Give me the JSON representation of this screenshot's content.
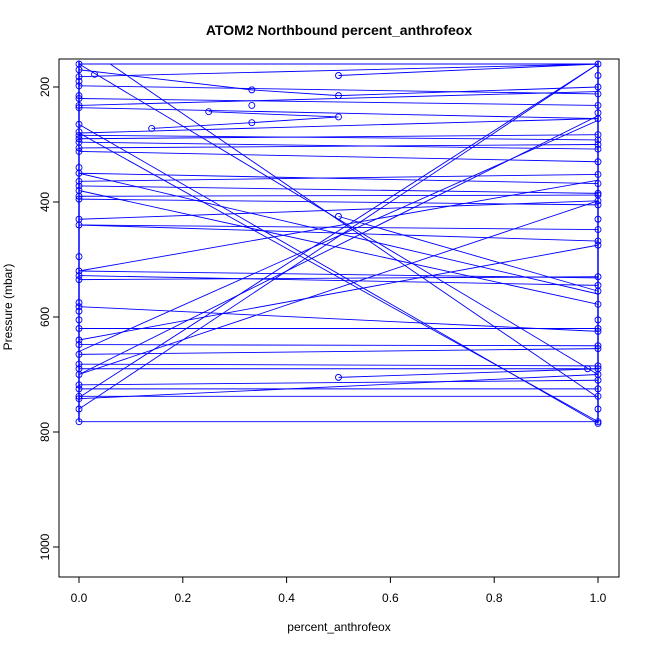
{
  "chart_data": {
    "type": "line",
    "title": "ATOM2 Northbound percent_anthrofeox",
    "xlabel": "percent_anthrofeox",
    "ylabel": "Pressure (mbar)",
    "xlim": [
      -0.04,
      1.04
    ],
    "ylim": [
      1050,
      155
    ],
    "y_reversed": true,
    "x_ticks": [
      0.0,
      0.2,
      0.4,
      0.6,
      0.8,
      1.0
    ],
    "x_tick_labels": [
      "0.0",
      "0.2",
      "0.4",
      "0.6",
      "0.8",
      "1.0"
    ],
    "y_ticks": [
      200,
      400,
      600,
      800,
      1000
    ],
    "y_tick_labels": [
      "200",
      "400",
      "600",
      "800",
      "1000"
    ],
    "series_color": "#0000ff",
    "grid": false,
    "segments": [
      [
        [
          0,
          160
        ],
        [
          1,
          160
        ]
      ],
      [
        [
          0,
          182
        ],
        [
          1,
          160
        ]
      ],
      [
        [
          0,
          198
        ],
        [
          1,
          212
        ]
      ],
      [
        [
          0,
          220
        ],
        [
          1,
          232
        ]
      ],
      [
        [
          0,
          232
        ],
        [
          1,
          208
        ]
      ],
      [
        [
          0,
          236
        ],
        [
          1,
          255
        ]
      ],
      [
        [
          0,
          280
        ],
        [
          1,
          255
        ]
      ],
      [
        [
          0,
          284
        ],
        [
          1,
          292
        ]
      ],
      [
        [
          0,
          290
        ],
        [
          1,
          283
        ]
      ],
      [
        [
          0,
          296
        ],
        [
          1,
          308
        ]
      ],
      [
        [
          0,
          306
        ],
        [
          1,
          300
        ]
      ],
      [
        [
          0,
          312
        ],
        [
          1,
          330
        ]
      ],
      [
        [
          0,
          350
        ],
        [
          1,
          368
        ]
      ],
      [
        [
          0,
          364
        ],
        [
          1,
          352
        ]
      ],
      [
        [
          0,
          372
        ],
        [
          1,
          385
        ]
      ],
      [
        [
          0,
          390
        ],
        [
          1,
          388
        ]
      ],
      [
        [
          0,
          395
        ],
        [
          1,
          405
        ]
      ],
      [
        [
          0,
          430
        ],
        [
          1,
          398
        ]
      ],
      [
        [
          0,
          440
        ],
        [
          1,
          448
        ]
      ],
      [
        [
          0,
          440
        ],
        [
          1,
          468
        ]
      ],
      [
        [
          0,
          520
        ],
        [
          1,
          532
        ]
      ],
      [
        [
          0,
          528
        ],
        [
          1,
          545
        ]
      ],
      [
        [
          0,
          535
        ],
        [
          1,
          530
        ]
      ],
      [
        [
          0,
          582
        ],
        [
          1,
          625
        ]
      ],
      [
        [
          0,
          620
        ],
        [
          1,
          620
        ]
      ],
      [
        [
          0,
          648
        ],
        [
          1,
          650
        ]
      ],
      [
        [
          0,
          665
        ],
        [
          1,
          655
        ]
      ],
      [
        [
          0,
          682
        ],
        [
          1,
          685
        ]
      ],
      [
        [
          0,
          690
        ],
        [
          1,
          690
        ]
      ],
      [
        [
          0,
          718
        ],
        [
          1,
          710
        ]
      ],
      [
        [
          0,
          725
        ],
        [
          1,
          725
        ]
      ],
      [
        [
          0,
          738
        ],
        [
          1,
          738
        ]
      ],
      [
        [
          0,
          742
        ],
        [
          1,
          700
        ]
      ],
      [
        [
          0,
          782
        ],
        [
          1,
          782
        ]
      ],
      [
        [
          0,
          760
        ],
        [
          1,
          160
        ]
      ],
      [
        [
          0,
          740
        ],
        [
          1,
          160
        ]
      ],
      [
        [
          0,
          700
        ],
        [
          1,
          250
        ]
      ],
      [
        [
          0,
          700
        ],
        [
          1,
          398
        ]
      ],
      [
        [
          0,
          660
        ],
        [
          1,
          258
        ]
      ],
      [
        [
          0,
          640
        ],
        [
          1,
          475
        ]
      ],
      [
        [
          0,
          520
        ],
        [
          1,
          362
        ]
      ],
      [
        [
          0,
          280
        ],
        [
          1,
          782
        ]
      ],
      [
        [
          0,
          265
        ],
        [
          1,
          785
        ]
      ],
      [
        [
          0,
          160
        ],
        [
          1,
          700
        ]
      ],
      [
        [
          0.06,
          160
        ],
        [
          1,
          740
        ]
      ],
      [
        [
          0,
          350
        ],
        [
          1,
          560
        ]
      ],
      [
        [
          0,
          380
        ],
        [
          1,
          578
        ]
      ],
      [
        [
          0.5,
          180
        ],
        [
          1,
          160
        ]
      ],
      [
        [
          0.5,
          215
        ],
        [
          1,
          200
        ]
      ],
      [
        [
          0.333,
          205
        ],
        [
          0.5,
          215
        ]
      ],
      [
        [
          0.25,
          243
        ],
        [
          0.5,
          252
        ]
      ],
      [
        [
          0.333,
          262
        ],
        [
          0.5,
          252
        ]
      ],
      [
        [
          0.14,
          272
        ],
        [
          0.333,
          262
        ]
      ],
      [
        [
          0.5,
          705
        ],
        [
          1,
          690
        ]
      ],
      [
        [
          0.5,
          425
        ],
        [
          1,
          555
        ]
      ],
      [
        [
          0.0,
          170
        ],
        [
          0.333,
          205
        ]
      ]
    ],
    "points": [
      [
        0,
        160
      ],
      [
        0,
        170
      ],
      [
        0,
        182
      ],
      [
        0,
        190
      ],
      [
        0,
        198
      ],
      [
        0,
        215
      ],
      [
        0,
        220
      ],
      [
        0,
        232
      ],
      [
        0,
        236
      ],
      [
        0,
        265
      ],
      [
        0,
        278
      ],
      [
        0,
        284
      ],
      [
        0,
        290
      ],
      [
        0,
        296
      ],
      [
        0,
        306
      ],
      [
        0,
        312
      ],
      [
        0,
        340
      ],
      [
        0,
        350
      ],
      [
        0,
        364
      ],
      [
        0,
        372
      ],
      [
        0,
        380
      ],
      [
        0,
        390
      ],
      [
        0,
        395
      ],
      [
        0,
        430
      ],
      [
        0,
        440
      ],
      [
        0,
        495
      ],
      [
        0,
        520
      ],
      [
        0,
        528
      ],
      [
        0,
        535
      ],
      [
        0,
        575
      ],
      [
        0,
        582
      ],
      [
        0,
        590
      ],
      [
        0,
        605
      ],
      [
        0,
        620
      ],
      [
        0,
        640
      ],
      [
        0,
        648
      ],
      [
        0,
        665
      ],
      [
        0,
        682
      ],
      [
        0,
        690
      ],
      [
        0,
        700
      ],
      [
        0,
        718
      ],
      [
        0,
        725
      ],
      [
        0,
        738
      ],
      [
        0,
        742
      ],
      [
        0,
        760
      ],
      [
        0,
        782
      ],
      [
        0.03,
        178
      ],
      [
        0.14,
        272
      ],
      [
        0.25,
        243
      ],
      [
        0.333,
        205
      ],
      [
        0.333,
        232
      ],
      [
        0.333,
        262
      ],
      [
        0.5,
        180
      ],
      [
        0.5,
        215
      ],
      [
        0.5,
        252
      ],
      [
        0.5,
        425
      ],
      [
        0.5,
        705
      ],
      [
        0.98,
        690
      ],
      [
        1,
        160
      ],
      [
        1,
        180
      ],
      [
        1,
        200
      ],
      [
        1,
        212
      ],
      [
        1,
        232
      ],
      [
        1,
        245
      ],
      [
        1,
        255
      ],
      [
        1,
        283
      ],
      [
        1,
        292
      ],
      [
        1,
        300
      ],
      [
        1,
        308
      ],
      [
        1,
        330
      ],
      [
        1,
        352
      ],
      [
        1,
        368
      ],
      [
        1,
        385
      ],
      [
        1,
        388
      ],
      [
        1,
        398
      ],
      [
        1,
        405
      ],
      [
        1,
        430
      ],
      [
        1,
        448
      ],
      [
        1,
        468
      ],
      [
        1,
        475
      ],
      [
        1,
        530
      ],
      [
        1,
        545
      ],
      [
        1,
        555
      ],
      [
        1,
        578
      ],
      [
        1,
        605
      ],
      [
        1,
        620
      ],
      [
        1,
        625
      ],
      [
        1,
        650
      ],
      [
        1,
        655
      ],
      [
        1,
        685
      ],
      [
        1,
        690
      ],
      [
        1,
        700
      ],
      [
        1,
        710
      ],
      [
        1,
        725
      ],
      [
        1,
        738
      ],
      [
        1,
        760
      ],
      [
        1,
        782
      ],
      [
        1,
        785
      ]
    ]
  }
}
